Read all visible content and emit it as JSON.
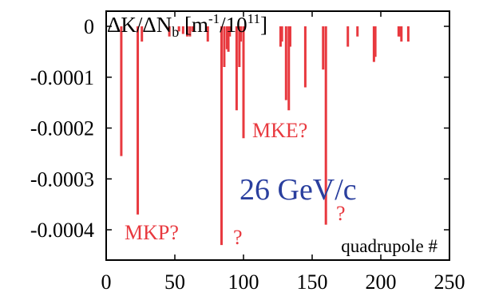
{
  "chart_data": {
    "type": "bar",
    "ylabel": {
      "main": "ΔK/ΔN",
      "sub": "b",
      "unit_open": " [m",
      "unit_exp": "-1",
      "unit_mid": "/10",
      "unit_exp2": "11",
      "unit_close": "]"
    },
    "xlabel": "quadrupole #",
    "xlim": [
      0,
      250
    ],
    "ylim": [
      -0.00045,
      0
    ],
    "x_ticks": [
      0,
      50,
      100,
      150,
      200,
      250
    ],
    "x_tick_labels": [
      "0",
      "50",
      "100",
      "150",
      "200",
      "250"
    ],
    "y_ticks": [
      0,
      -0.0001,
      -0.0002,
      -0.0003,
      -0.0004
    ],
    "y_tick_labels": [
      "0",
      "-0.0001",
      "-0.0002",
      "-0.0003",
      "-0.0004"
    ],
    "bar_color": "#e8393f",
    "bars": [
      {
        "x": 11,
        "y": -0.000255
      },
      {
        "x": 23,
        "y": -0.00037
      },
      {
        "x": 26,
        "y": -3e-05
      },
      {
        "x": 46,
        "y": -2e-05
      },
      {
        "x": 53,
        "y": -1e-05
      },
      {
        "x": 56,
        "y": -1.5e-05
      },
      {
        "x": 59,
        "y": -2e-05
      },
      {
        "x": 61,
        "y": -2e-05
      },
      {
        "x": 63,
        "y": -1e-05
      },
      {
        "x": 74,
        "y": -3e-05
      },
      {
        "x": 84,
        "y": -0.00043
      },
      {
        "x": 86,
        "y": -8e-05
      },
      {
        "x": 88,
        "y": -4.5e-05
      },
      {
        "x": 89,
        "y": -5e-05
      },
      {
        "x": 90,
        "y": -2e-05
      },
      {
        "x": 95,
        "y": -0.000165
      },
      {
        "x": 97,
        "y": -8e-05
      },
      {
        "x": 98,
        "y": -3e-05
      },
      {
        "x": 100,
        "y": -0.00022
      },
      {
        "x": 127,
        "y": -4e-05
      },
      {
        "x": 128,
        "y": -3e-05
      },
      {
        "x": 131,
        "y": -0.000145
      },
      {
        "x": 133,
        "y": -0.000165
      },
      {
        "x": 134,
        "y": -4e-05
      },
      {
        "x": 145,
        "y": -0.00012
      },
      {
        "x": 158,
        "y": -8.5e-05
      },
      {
        "x": 160,
        "y": -0.00039
      },
      {
        "x": 176,
        "y": -4e-05
      },
      {
        "x": 183,
        "y": -2e-05
      },
      {
        "x": 195,
        "y": -7e-05
      },
      {
        "x": 196,
        "y": -6e-05
      },
      {
        "x": 213,
        "y": -2e-05
      },
      {
        "x": 214,
        "y": -2e-05
      },
      {
        "x": 215,
        "y": -3e-05
      },
      {
        "x": 220,
        "y": -3e-05
      }
    ],
    "annotations": [
      {
        "text": "MKP?",
        "color": "#e8393f"
      },
      {
        "text": "?",
        "color": "#e8393f"
      },
      {
        "text": "MKE?",
        "color": "#e8393f"
      },
      {
        "text": "?",
        "color": "#e8393f"
      },
      {
        "text": "26 GeV/c",
        "color": "#2a3f9e"
      }
    ]
  }
}
